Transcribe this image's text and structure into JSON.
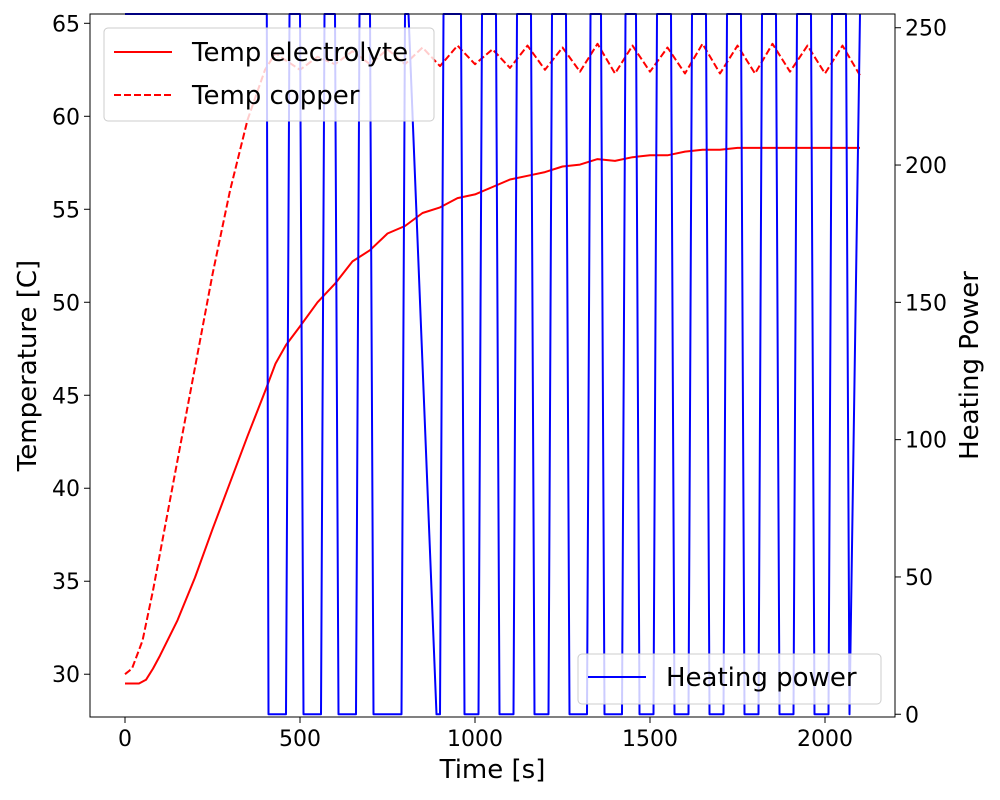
{
  "chart_data": {
    "type": "line",
    "xlabel": "Time [s]",
    "ylabel_left": "Temperature [C]",
    "ylabel_right": "Heating Power",
    "xlim": [
      -100,
      2200
    ],
    "ylim_left": [
      27.7,
      65.5
    ],
    "ylim_right": [
      -1,
      255
    ],
    "x_ticks": [
      0,
      500,
      1000,
      1500,
      2000
    ],
    "y_left_ticks": [
      30,
      35,
      40,
      45,
      50,
      55,
      60,
      65
    ],
    "y_right_ticks": [
      0,
      50,
      100,
      150,
      200,
      250
    ],
    "grid": false,
    "legend_left": {
      "placement": "upper-left",
      "entries": [
        "Temp electrolyte",
        "Temp copper"
      ]
    },
    "legend_right": {
      "placement": "lower-right",
      "entries": [
        "Heating power"
      ]
    },
    "series": [
      {
        "name": "Temp electrolyte",
        "axis": "left",
        "color": "#ff0000",
        "style": "solid",
        "x": [
          0,
          40,
          60,
          80,
          100,
          150,
          200,
          250,
          300,
          350,
          400,
          430,
          460,
          500,
          550,
          600,
          650,
          700,
          750,
          800,
          850,
          900,
          950,
          1000,
          1050,
          1100,
          1150,
          1200,
          1250,
          1300,
          1350,
          1400,
          1450,
          1500,
          1550,
          1600,
          1650,
          1700,
          1750,
          1800,
          1850,
          1900,
          1950,
          2000,
          2050,
          2100
        ],
        "values": [
          29.5,
          29.5,
          29.7,
          30.3,
          31.0,
          32.9,
          35.2,
          37.8,
          40.3,
          42.8,
          45.2,
          46.7,
          47.7,
          48.7,
          50.0,
          51.0,
          52.2,
          52.8,
          53.7,
          54.1,
          54.8,
          55.1,
          55.6,
          55.8,
          56.2,
          56.6,
          56.8,
          57.0,
          57.3,
          57.4,
          57.7,
          57.6,
          57.8,
          57.9,
          57.9,
          58.1,
          58.2,
          58.2,
          58.3,
          58.3,
          58.3,
          58.3,
          58.3,
          58.3,
          58.3,
          58.3
        ]
      },
      {
        "name": "Temp copper",
        "axis": "left",
        "color": "#ff0000",
        "style": "dashed",
        "x": [
          0,
          20,
          50,
          80,
          110,
          150,
          200,
          250,
          300,
          350,
          400,
          430,
          460,
          500,
          550,
          600,
          650,
          700,
          750,
          800,
          850,
          900,
          950,
          1000,
          1050,
          1100,
          1150,
          1200,
          1250,
          1300,
          1350,
          1400,
          1450,
          1500,
          1550,
          1600,
          1650,
          1700,
          1750,
          1800,
          1850,
          1900,
          1950,
          2000,
          2050,
          2100
        ],
        "values": [
          30.0,
          30.3,
          31.8,
          34.5,
          37.5,
          41.5,
          46.5,
          51.5,
          56.0,
          59.8,
          62.5,
          63.4,
          63.0,
          62.5,
          63.2,
          62.8,
          63.5,
          62.8,
          63.6,
          62.8,
          63.7,
          62.7,
          63.8,
          62.8,
          63.6,
          62.6,
          63.8,
          62.5,
          63.7,
          62.4,
          63.9,
          62.3,
          63.8,
          62.4,
          63.7,
          62.3,
          63.9,
          62.3,
          63.8,
          62.3,
          63.9,
          62.4,
          63.8,
          62.3,
          63.8,
          62.2
        ]
      },
      {
        "name": "Heating power",
        "axis": "right",
        "color": "#0000ff",
        "style": "solid",
        "x": [
          0,
          405,
          410,
          460,
          470,
          500,
          510,
          560,
          570,
          600,
          610,
          660,
          670,
          700,
          710,
          790,
          800,
          810,
          890,
          900,
          910,
          960,
          970,
          1010,
          1020,
          1060,
          1070,
          1110,
          1120,
          1160,
          1170,
          1210,
          1220,
          1260,
          1270,
          1320,
          1330,
          1360,
          1370,
          1420,
          1430,
          1460,
          1470,
          1510,
          1520,
          1560,
          1570,
          1610,
          1620,
          1660,
          1670,
          1710,
          1720,
          1760,
          1770,
          1810,
          1820,
          1860,
          1870,
          1910,
          1920,
          1960,
          1970,
          2010,
          2020,
          2060,
          2070,
          2100
        ],
        "values": [
          255,
          255,
          0,
          0,
          255,
          255,
          0,
          0,
          255,
          255,
          0,
          0,
          255,
          255,
          0,
          0,
          255,
          255,
          0,
          0,
          255,
          255,
          0,
          0,
          255,
          255,
          0,
          0,
          255,
          255,
          0,
          0,
          255,
          255,
          0,
          0,
          255,
          255,
          0,
          0,
          255,
          255,
          0,
          0,
          255,
          255,
          0,
          0,
          255,
          255,
          0,
          0,
          255,
          255,
          0,
          0,
          255,
          255,
          0,
          0,
          255,
          255,
          0,
          0,
          255,
          255,
          0,
          255
        ]
      }
    ]
  }
}
